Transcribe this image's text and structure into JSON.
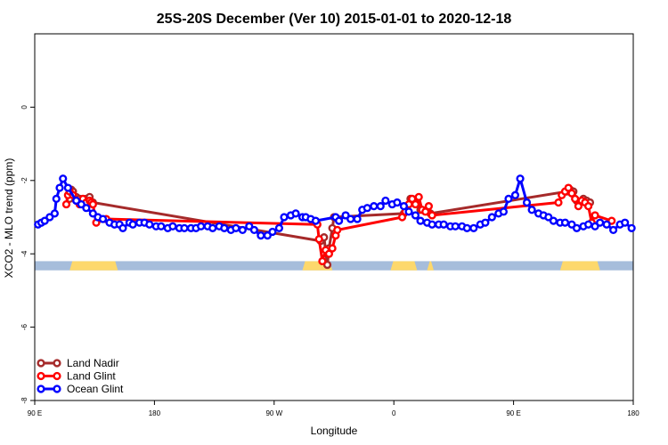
{
  "chart_data": {
    "type": "line",
    "title": "25S-20S December (Ver 10)   2015-01-01 to 2020-12-18",
    "xlabel": "Longitude",
    "ylabel": "XCO2 - MLO trend (ppm)",
    "xlim": [
      90,
      450
    ],
    "ylim": [
      -8,
      2
    ],
    "x_ticks": [
      {
        "value": 90,
        "label": "90 E"
      },
      {
        "value": 162,
        "label": "180"
      },
      {
        "value": 234,
        "label": "90 W"
      },
      {
        "value": 306,
        "label": "0"
      },
      {
        "value": 378,
        "label": "90 E"
      },
      {
        "value": 450,
        "label": "180"
      }
    ],
    "y_ticks": [
      {
        "value": 0,
        "label": "0"
      },
      {
        "value": -2,
        "label": "-2"
      },
      {
        "value": -4,
        "label": "-4"
      },
      {
        "value": -6,
        "label": "-6"
      },
      {
        "value": -8,
        "label": "-8"
      }
    ],
    "land_mask": {
      "y_range": [
        -4.45,
        -4.2
      ],
      "ocean_color": "#a6bddb",
      "land_color": "#fdd86c",
      "land_segments": [
        [
          111,
          140
        ],
        [
          251,
          269
        ],
        [
          304,
          320
        ],
        [
          326,
          330
        ],
        [
          406,
          430
        ]
      ]
    },
    "legend": {
      "position": "bottom-left",
      "entries": [
        {
          "name": "Land Nadir",
          "color": "#a52a2a"
        },
        {
          "name": "Land Glint",
          "color": "#ff0000"
        },
        {
          "name": "Ocean Glint",
          "color": "#0000ff"
        }
      ]
    },
    "series": [
      {
        "name": "Land Nadir",
        "color": "#a52a2a",
        "x": [
          111,
          112,
          113,
          115,
          117,
          119,
          121,
          123,
          125,
          262,
          264,
          266,
          267,
          269,
          270,
          312,
          314,
          316,
          318,
          320,
          322,
          326,
          328,
          410,
          412,
          414,
          416,
          420,
          422,
          424
        ],
        "y": [
          -2.5,
          -2.25,
          -2.3,
          -2.45,
          -2.5,
          -2.6,
          -2.5,
          -2.45,
          -2.6,
          -3.65,
          -3.55,
          -4.3,
          -3.85,
          -3.3,
          -3.0,
          -2.9,
          -2.8,
          -2.5,
          -2.6,
          -2.5,
          -2.8,
          -2.8,
          -2.9,
          -2.3,
          -2.25,
          -2.3,
          -2.55,
          -2.5,
          -2.55,
          -2.6
        ]
      },
      {
        "name": "Land Glint",
        "color": "#ff0000",
        "x": [
          109,
          110,
          111,
          113,
          115,
          117,
          119,
          121,
          123,
          124,
          125,
          127,
          133,
          260,
          261,
          263,
          265,
          267,
          269,
          271,
          272,
          311,
          313,
          315,
          317,
          319,
          321,
          323,
          325,
          327,
          329,
          405,
          407,
          409,
          411,
          413,
          415,
          417,
          419,
          421,
          423,
          425,
          427,
          437
        ],
        "y": [
          -2.65,
          -2.4,
          -2.3,
          -2.4,
          -2.55,
          -2.65,
          -2.5,
          -2.6,
          -2.55,
          -2.6,
          -2.65,
          -3.15,
          -3.05,
          -3.2,
          -3.6,
          -4.2,
          -3.9,
          -4.0,
          -3.85,
          -3.5,
          -3.35,
          -3.0,
          -2.85,
          -2.65,
          -2.5,
          -2.65,
          -2.45,
          -2.8,
          -2.85,
          -2.7,
          -2.95,
          -2.6,
          -2.4,
          -2.3,
          -2.2,
          -2.35,
          -2.5,
          -2.7,
          -2.55,
          -2.6,
          -2.7,
          -3.15,
          -2.95,
          -3.1
        ]
      },
      {
        "name": "Ocean Glint",
        "color": "#0000ff",
        "x": [
          92,
          94,
          96,
          99,
          102,
          103,
          105,
          107,
          110,
          115,
          118,
          121,
          125,
          128,
          131,
          135,
          138,
          141,
          143,
          147,
          149,
          153,
          156,
          159,
          163,
          166,
          170,
          173,
          177,
          180,
          184,
          187,
          190,
          194,
          197,
          201,
          204,
          208,
          211,
          215,
          219,
          222,
          226,
          230,
          233,
          237,
          240,
          244,
          247,
          251,
          253,
          256,
          259,
          271,
          273,
          277,
          280,
          284,
          287,
          290,
          294,
          298,
          301,
          305,
          308,
          312,
          315,
          319,
          322,
          326,
          329,
          333,
          336,
          340,
          343,
          347,
          350,
          354,
          358,
          361,
          365,
          369,
          372,
          375,
          379,
          382,
          386,
          389,
          393,
          396,
          399,
          402,
          406,
          409,
          413,
          416,
          420,
          423,
          427,
          430,
          434,
          438,
          442,
          445,
          449
        ],
        "y": [
          -3.2,
          -3.15,
          -3.1,
          -3.0,
          -2.9,
          -2.5,
          -2.2,
          -1.95,
          -2.2,
          -2.55,
          -2.65,
          -2.75,
          -2.9,
          -3.0,
          -3.05,
          -3.15,
          -3.2,
          -3.2,
          -3.3,
          -3.15,
          -3.2,
          -3.15,
          -3.15,
          -3.2,
          -3.25,
          -3.25,
          -3.3,
          -3.25,
          -3.3,
          -3.3,
          -3.3,
          -3.3,
          -3.25,
          -3.25,
          -3.3,
          -3.25,
          -3.3,
          -3.35,
          -3.3,
          -3.35,
          -3.25,
          -3.35,
          -3.5,
          -3.5,
          -3.4,
          -3.3,
          -3.0,
          -2.95,
          -2.9,
          -3.0,
          -3.0,
          -3.05,
          -3.1,
          -3.0,
          -3.1,
          -2.95,
          -3.05,
          -3.05,
          -2.8,
          -2.75,
          -2.7,
          -2.7,
          -2.55,
          -2.65,
          -2.6,
          -2.7,
          -2.85,
          -2.95,
          -3.1,
          -3.15,
          -3.2,
          -3.2,
          -3.2,
          -3.25,
          -3.25,
          -3.25,
          -3.3,
          -3.3,
          -3.2,
          -3.15,
          -3.0,
          -2.9,
          -2.85,
          -2.5,
          -2.4,
          -1.95,
          -2.6,
          -2.8,
          -2.9,
          -2.95,
          -3.0,
          -3.1,
          -3.15,
          -3.15,
          -3.2,
          -3.3,
          -3.25,
          -3.2,
          -3.25,
          -3.15,
          -3.2,
          -3.35,
          -3.2,
          -3.15,
          -3.3
        ]
      }
    ]
  }
}
